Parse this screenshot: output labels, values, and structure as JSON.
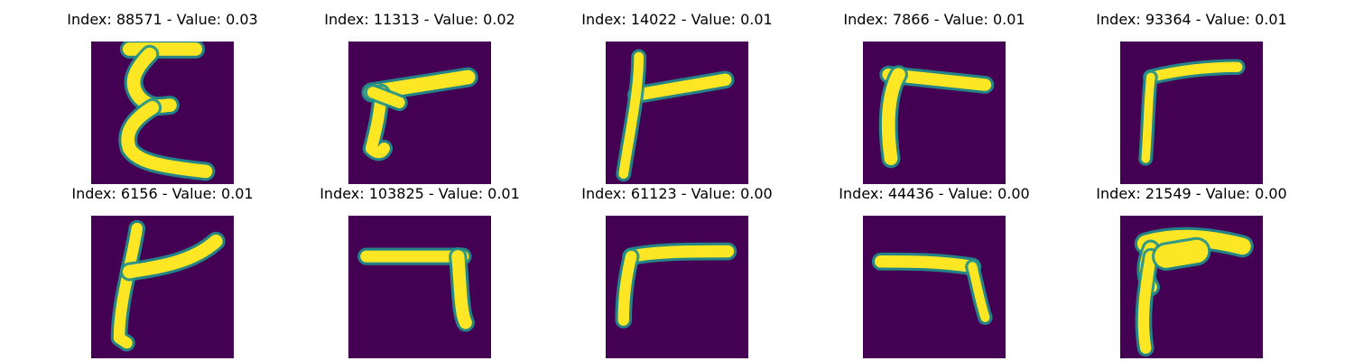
{
  "figure": {
    "colormap": {
      "low": "#440154",
      "mid": "#21918c",
      "high": "#fde725"
    },
    "panels": [
      {
        "title": "Index: 88571 - Value: 0.03",
        "index": 88571,
        "value": 0.03,
        "shape": "E"
      },
      {
        "title": "Index: 11313 - Value: 0.02",
        "index": 11313,
        "value": 0.02,
        "shape": "hook-left"
      },
      {
        "title": "Index: 14022 - Value: 0.01",
        "index": 14022,
        "value": 0.01,
        "shape": "T-left"
      },
      {
        "title": "Index: 7866 - Value: 0.01",
        "index": 7866,
        "value": 0.01,
        "shape": "gamma"
      },
      {
        "title": "Index: 93364 - Value: 0.01",
        "index": 93364,
        "value": 0.01,
        "shape": "gamma-thin"
      },
      {
        "title": "Index: 6156 - Value: 0.01",
        "index": 6156,
        "value": 0.01,
        "shape": "fork"
      },
      {
        "title": "Index: 103825 - Value: 0.01",
        "index": 103825,
        "value": 0.01,
        "shape": "seven"
      },
      {
        "title": "Index: 61123 - Value: 0.00",
        "index": 61123,
        "value": 0.0,
        "shape": "gamma-small"
      },
      {
        "title": "Index: 44436 - Value: 0.00",
        "index": 44436,
        "value": 0.0,
        "shape": "seven-thin"
      },
      {
        "title": "Index: 21549 - Value: 0.00",
        "index": 21549,
        "value": 0.0,
        "shape": "blob-gamma"
      }
    ]
  }
}
